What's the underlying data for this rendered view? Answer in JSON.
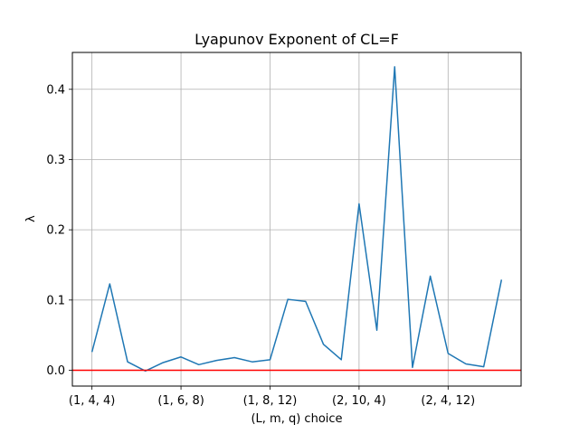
{
  "chart_data": {
    "type": "line",
    "title": "Lyapunov Exponent of CL=F",
    "xlabel": "(L, m, q) choice",
    "ylabel": "λ",
    "x_ticks": [
      {
        "index": 0,
        "label": "(1, 4, 4)"
      },
      {
        "index": 5,
        "label": "(1, 6, 8)"
      },
      {
        "index": 10,
        "label": "(1, 8, 12)"
      },
      {
        "index": 15,
        "label": "(2, 10, 4)"
      },
      {
        "index": 20,
        "label": "(2, 4, 12)"
      }
    ],
    "y_ticks": [
      0.0,
      0.1,
      0.2,
      0.3,
      0.4
    ],
    "y_tick_labels": [
      "0.0",
      "0.1",
      "0.2",
      "0.3",
      "0.4"
    ],
    "xlim": [
      -1.1,
      24.1
    ],
    "ylim": [
      -0.0225,
      0.4525
    ],
    "grid": true,
    "series": [
      {
        "color": "#1f77b4",
        "x": [
          0,
          1,
          2,
          3,
          4,
          5,
          6,
          7,
          8,
          9,
          10,
          11,
          12,
          13,
          14,
          15,
          16,
          17,
          18,
          19,
          20,
          21,
          22,
          23
        ],
        "values": [
          0.026,
          0.123,
          0.012,
          -0.001,
          0.011,
          0.019,
          0.008,
          0.014,
          0.018,
          0.012,
          0.015,
          0.101,
          0.098,
          0.037,
          0.015,
          0.237,
          0.057,
          0.432,
          0.004,
          0.134,
          0.024,
          0.009,
          0.005,
          0.129
        ]
      }
    ],
    "reference_line": {
      "y": 0.0,
      "color": "#ff0000"
    }
  }
}
